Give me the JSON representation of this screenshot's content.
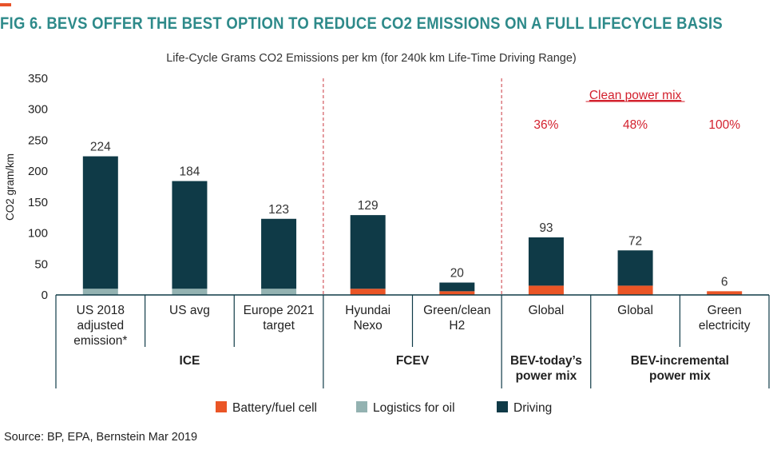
{
  "title": "FIG 6. BEVS OFFER THE BEST OPTION TO REDUCE CO2 EMISSIONS ON A FULL LIFECYCLE BASIS",
  "source": "Source: BP, EPA, Bernstein Mar 2019",
  "colors": {
    "title": "#2e8a8a",
    "accent": "#e8522a",
    "driving": "#0f3a47",
    "logistics": "#93b2b1",
    "battery": "#ea5526",
    "red_text": "#d3212e",
    "divider": "#c9363e",
    "axis": "#0f3a47"
  },
  "chart_data": {
    "type": "bar",
    "stacked": true,
    "title": "Life-Cycle Grams CO2 Emissions per km (for 240k km Life-Time Driving Range)",
    "ylabel": "CO2 gram/km",
    "ylim": [
      0,
      350
    ],
    "yticks": [
      0,
      50,
      100,
      150,
      200,
      250,
      300,
      350
    ],
    "categories": [
      [
        "US 2018",
        "adjusted",
        "emission*"
      ],
      [
        "US avg"
      ],
      [
        "Europe 2021",
        "target"
      ],
      [
        "Hyundai",
        "Nexo"
      ],
      [
        "Green/clean",
        "H2"
      ],
      [
        "Global"
      ],
      [
        "Global"
      ],
      [
        "Green",
        "electricity"
      ]
    ],
    "series": [
      {
        "name": "Battery/fuel cell",
        "color_key": "battery",
        "values": [
          0,
          0,
          0,
          10,
          6,
          15,
          15,
          6
        ]
      },
      {
        "name": "Logistics for oil",
        "color_key": "logistics",
        "values": [
          10,
          10,
          10,
          0,
          0,
          0,
          0,
          0
        ]
      },
      {
        "name": "Driving",
        "color_key": "driving",
        "values": [
          214,
          174,
          113,
          119,
          14,
          78,
          57,
          0
        ]
      }
    ],
    "totals": [
      "224",
      "184",
      "123",
      "129",
      "20",
      "93",
      "72",
      "6"
    ],
    "groups": [
      {
        "label": [
          "ICE"
        ],
        "start": 0,
        "end": 2
      },
      {
        "label": [
          "FCEV"
        ],
        "start": 3,
        "end": 4
      },
      {
        "label": [
          "BEV-today’s",
          "power mix"
        ],
        "start": 5,
        "end": 5
      },
      {
        "label": [
          "BEV-incremental",
          "power mix"
        ],
        "start": 6,
        "end": 7
      }
    ],
    "annotation": {
      "header": "Clean power mix",
      "percents": [
        {
          "index": 5,
          "text": "36%"
        },
        {
          "index": 6,
          "text": "48%"
        },
        {
          "index": 7,
          "text": "100%"
        }
      ]
    },
    "legend": [
      "Battery/fuel cell",
      "Logistics for oil",
      "Driving"
    ],
    "legend_position": "bottom"
  }
}
